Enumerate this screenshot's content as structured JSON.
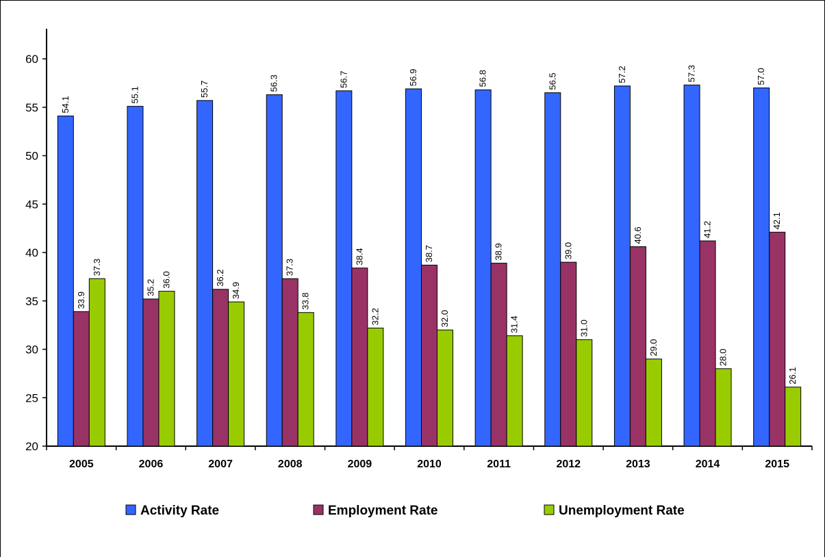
{
  "chart_data": {
    "type": "bar",
    "title": "",
    "xlabel": "",
    "ylabel": "",
    "ylim": [
      20,
      60
    ],
    "yticks": [
      20,
      25,
      30,
      35,
      40,
      45,
      50,
      55,
      60
    ],
    "grid": false,
    "legend_position": "bottom",
    "categories": [
      "2005",
      "2006",
      "2007",
      "2008",
      "2009",
      "2010",
      "2011",
      "2012",
      "2013",
      "2014",
      "2015"
    ],
    "series": [
      {
        "name": "Activity Rate",
        "color": "#3366FF",
        "values": [
          54.1,
          55.1,
          55.7,
          56.3,
          56.7,
          56.9,
          56.8,
          56.5,
          57.2,
          57.3,
          57.0
        ],
        "labels": [
          "54.1",
          "55.1",
          "55.7",
          "56.3",
          "56.7",
          "56.9",
          "56.8",
          "56.5",
          "57.2",
          "57.3",
          "57.0"
        ]
      },
      {
        "name": "Employment Rate",
        "color": "#993366",
        "values": [
          33.9,
          35.2,
          36.2,
          37.3,
          38.4,
          38.7,
          38.9,
          39.0,
          40.6,
          41.2,
          42.1
        ],
        "labels": [
          "33.9",
          "35.2",
          "36.2",
          "37.3",
          "38.4",
          "38.7",
          "38.9",
          "39.0",
          "40.6",
          "41.2",
          "42.1"
        ]
      },
      {
        "name": "Unemployment Rate",
        "color": "#99CC00",
        "values": [
          37.3,
          36.0,
          34.9,
          33.8,
          32.2,
          32.0,
          31.4,
          31.0,
          29.0,
          28.0,
          26.1
        ],
        "labels": [
          "37.3",
          "36.0",
          "34.9",
          "33.8",
          "32.2",
          "32.0",
          "31.4",
          "31.0",
          "29.0",
          "28.0",
          "26.1"
        ]
      }
    ]
  }
}
